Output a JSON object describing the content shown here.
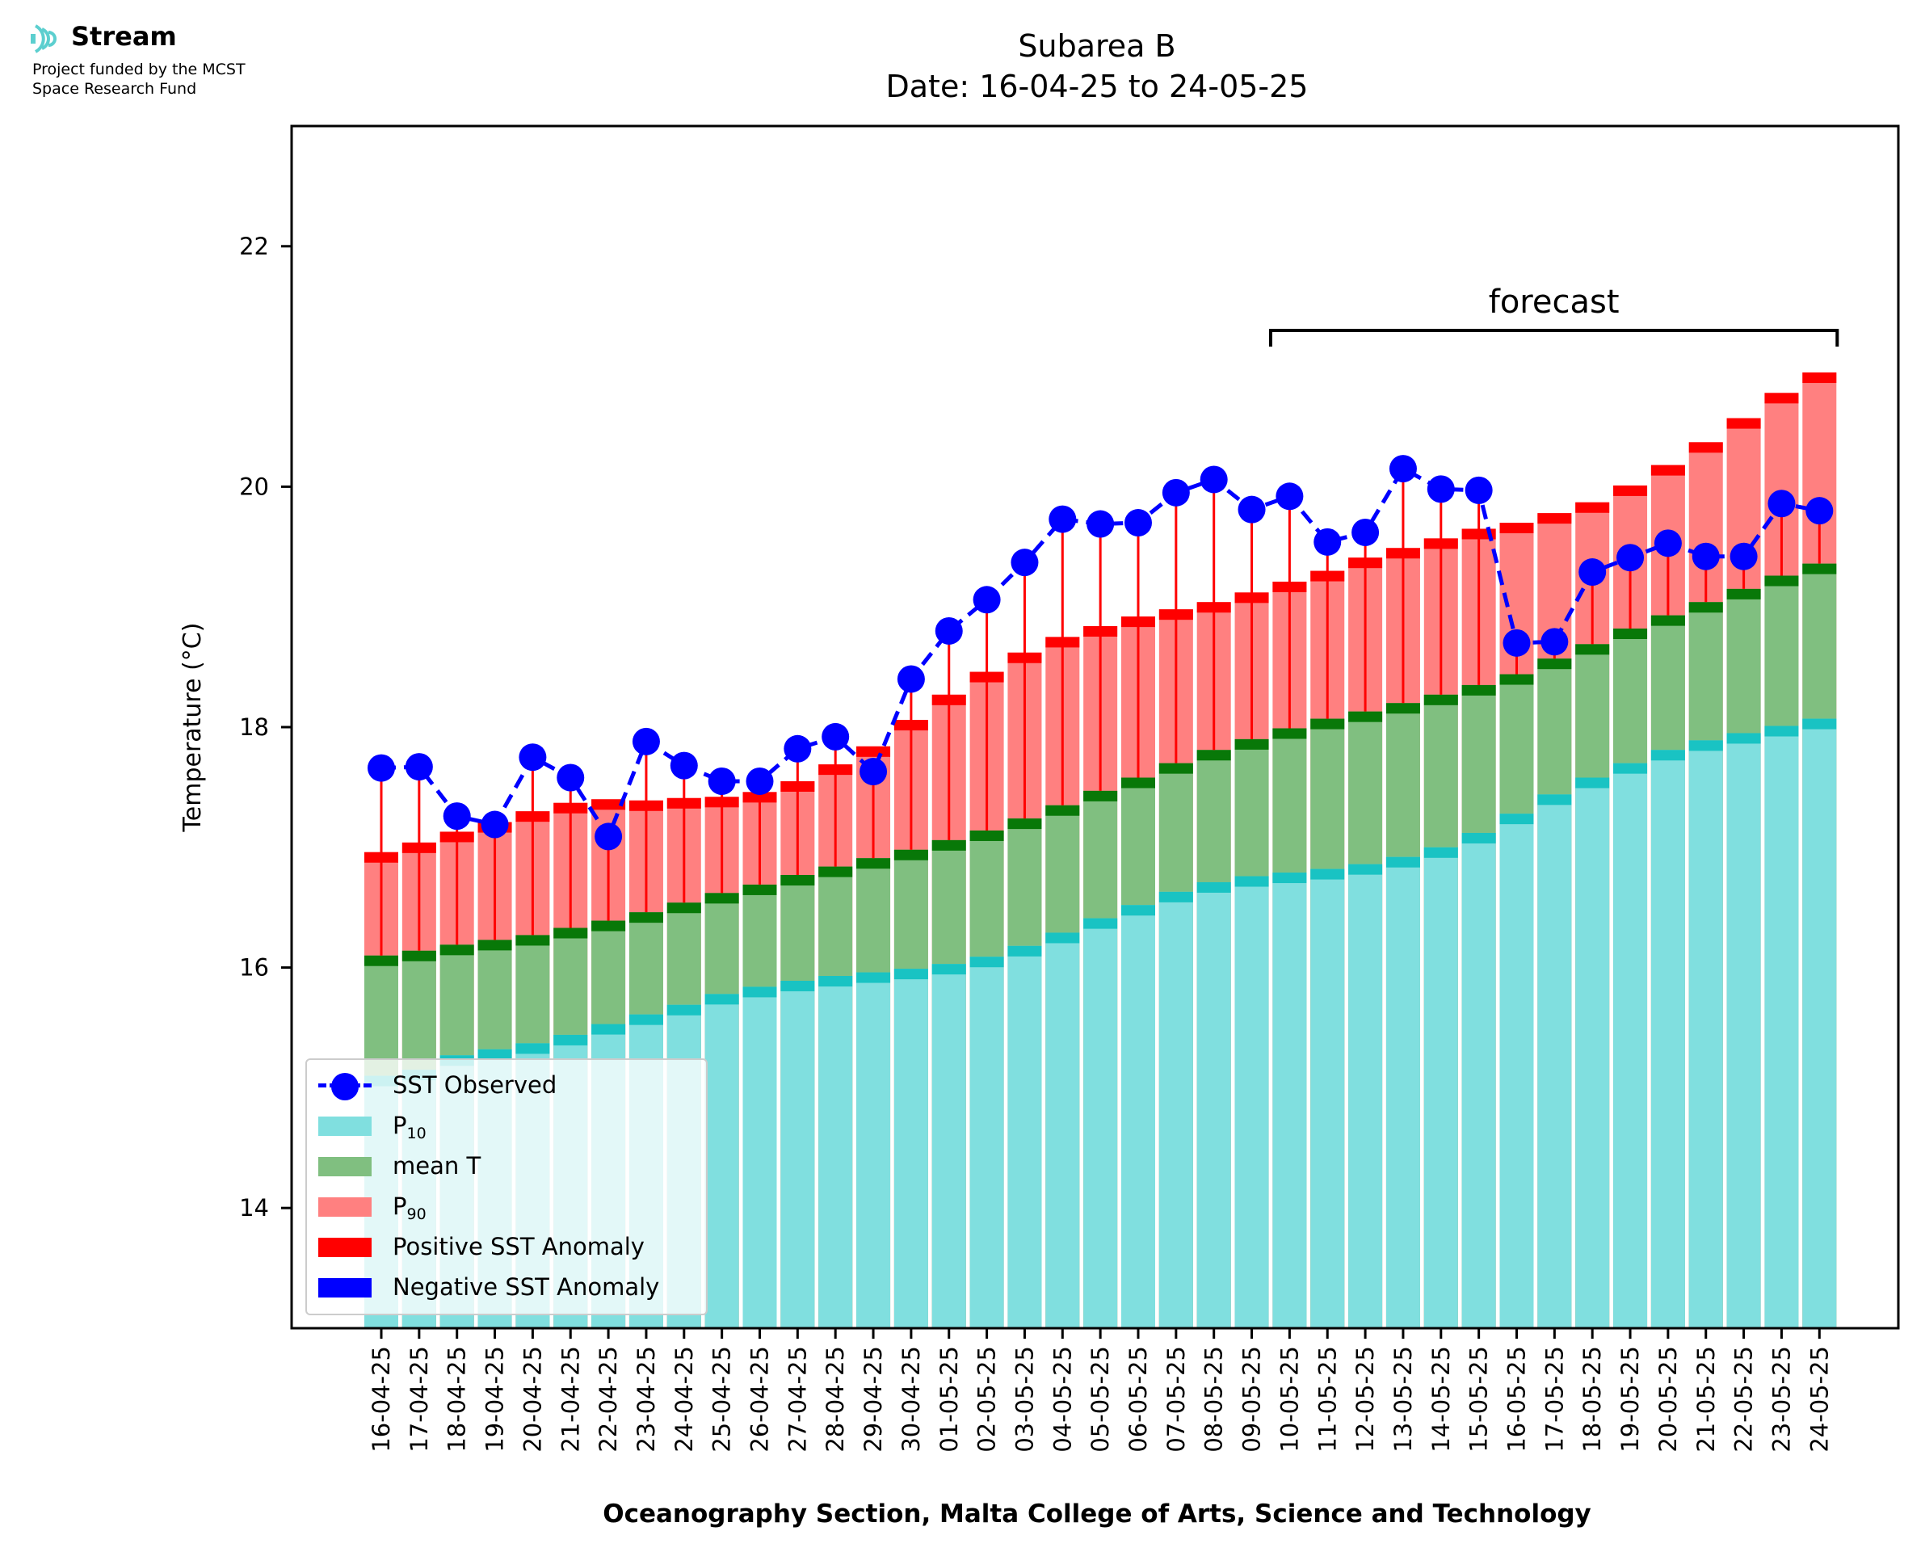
{
  "logo": {
    "name": "Stream",
    "funded_line1": "Project funded by the MCST",
    "funded_line2": "Space Research Fund"
  },
  "colors": {
    "p10": "#80dfdf",
    "p10_cap": "#19c3c3",
    "mean": "#80bf80",
    "mean_cap": "#087808",
    "p90": "#ff8080",
    "p90_cap": "#ff0000",
    "observed": "#0000ff",
    "negative_anomaly": "#0000ff",
    "positive_anomaly": "#ff0000"
  },
  "chart_data": {
    "type": "bar",
    "title_line1": "Subarea B",
    "title_line2": "Date: 16-04-25 to 24-05-25",
    "xlabel": "Oceanography Section, Malta College of Arts, Science and Technology",
    "ylabel": "Temperature (°C)",
    "ylim": [
      13.0,
      23.0
    ],
    "yticks": [
      14,
      16,
      18,
      20,
      22
    ],
    "grid": false,
    "legend_position": "lower-left",
    "annotation": "forecast",
    "forecast_start_index": 24,
    "categories": [
      "16-04-25",
      "17-04-25",
      "18-04-25",
      "19-04-25",
      "20-04-25",
      "21-04-25",
      "22-04-25",
      "23-04-25",
      "24-04-25",
      "25-04-25",
      "26-04-25",
      "27-04-25",
      "28-04-25",
      "29-04-25",
      "30-04-25",
      "01-05-25",
      "02-05-25",
      "03-05-25",
      "04-05-25",
      "05-05-25",
      "06-05-25",
      "07-05-25",
      "08-05-25",
      "09-05-25",
      "10-05-25",
      "11-05-25",
      "12-05-25",
      "13-05-25",
      "14-05-25",
      "15-05-25",
      "16-05-25",
      "17-05-25",
      "18-05-25",
      "19-05-25",
      "20-05-25",
      "21-05-25",
      "22-05-25",
      "23-05-25",
      "24-05-25"
    ],
    "series": [
      {
        "name": "P₁₀",
        "values": [
          15.1,
          15.15,
          15.27,
          15.32,
          15.37,
          15.44,
          15.53,
          15.61,
          15.69,
          15.78,
          15.84,
          15.89,
          15.93,
          15.96,
          15.99,
          16.03,
          16.09,
          16.18,
          16.29,
          16.41,
          16.52,
          16.63,
          16.71,
          16.76,
          16.79,
          16.82,
          16.86,
          16.92,
          17.0,
          17.12,
          17.28,
          17.44,
          17.58,
          17.7,
          17.81,
          17.89,
          17.95,
          18.01,
          18.07
        ]
      },
      {
        "name": "mean T",
        "values": [
          16.1,
          16.14,
          16.19,
          16.23,
          16.27,
          16.33,
          16.39,
          16.46,
          16.54,
          16.62,
          16.69,
          16.77,
          16.84,
          16.91,
          16.98,
          17.06,
          17.14,
          17.24,
          17.35,
          17.47,
          17.58,
          17.7,
          17.81,
          17.9,
          17.99,
          18.07,
          18.13,
          18.2,
          18.27,
          18.35,
          18.44,
          18.57,
          18.69,
          18.82,
          18.93,
          19.04,
          19.15,
          19.26,
          19.36
        ]
      },
      {
        "name": "P₉₀",
        "values": [
          16.96,
          17.04,
          17.13,
          17.21,
          17.3,
          17.37,
          17.4,
          17.39,
          17.41,
          17.42,
          17.46,
          17.55,
          17.69,
          17.84,
          18.06,
          18.27,
          18.46,
          18.62,
          18.75,
          18.84,
          18.92,
          18.98,
          19.04,
          19.12,
          19.21,
          19.3,
          19.41,
          19.49,
          19.57,
          19.65,
          19.7,
          19.78,
          19.87,
          20.01,
          20.18,
          20.37,
          20.57,
          20.78,
          20.95
        ]
      },
      {
        "name": "SST Observed",
        "values": [
          17.66,
          17.67,
          17.26,
          17.19,
          17.75,
          17.58,
          17.09,
          17.88,
          17.68,
          17.55,
          17.55,
          17.82,
          17.92,
          17.63,
          18.4,
          18.8,
          19.06,
          19.37,
          19.73,
          19.69,
          19.7,
          19.95,
          20.06,
          19.81,
          19.92,
          19.54,
          19.62,
          20.15,
          19.98,
          19.97,
          18.7,
          18.71,
          19.29,
          19.41,
          19.53,
          19.42,
          19.42,
          19.86,
          19.8
        ]
      }
    ],
    "legend": [
      "SST Observed",
      "P",
      "mean T",
      "P",
      "Positive SST Anomaly",
      "Negative SST Anomaly"
    ],
    "legend_subscripts": [
      "10",
      "90"
    ]
  }
}
